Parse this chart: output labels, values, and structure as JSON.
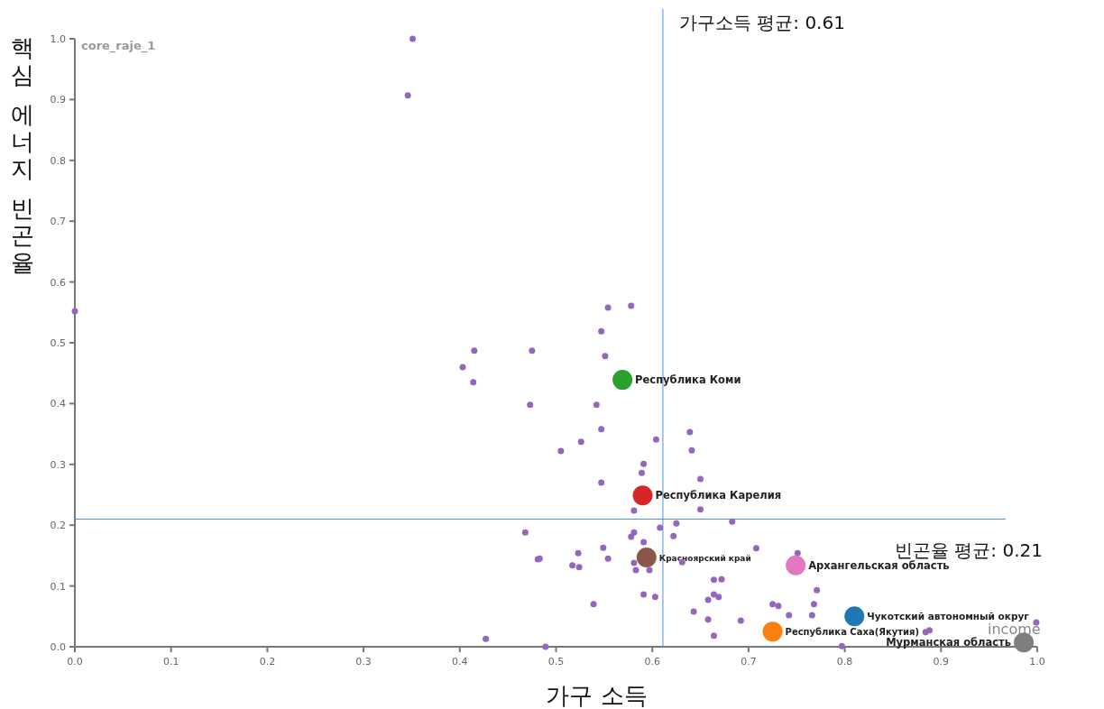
{
  "chart_data": {
    "type": "scatter",
    "xlabel": "가구 소득",
    "ylabel": "핵심 에너지 빈곤율",
    "annotations": [
      "core_raje_1",
      "income"
    ],
    "xlim": [
      0,
      1
    ],
    "ylim": [
      0,
      1
    ],
    "xticks": [
      {
        "value": 0,
        "label": "0.0"
      },
      0.1,
      0.2,
      0.3,
      0.4,
      0.5,
      0.6,
      0.7,
      0.8,
      0.9,
      {
        "value": 1,
        "label": "1.0"
      }
    ],
    "yticks": [
      {
        "value": 0,
        "label": "0.0"
      },
      0.1,
      0.2,
      0.3,
      0.4,
      0.5,
      0.6,
      0.7,
      0.8,
      0.9,
      {
        "value": 1,
        "label": "1.0"
      }
    ],
    "grid": false,
    "marker": "circle",
    "ref_lines": [
      {
        "axis": "x",
        "value": 0.611,
        "label": "가구소득 평균: 0.61",
        "color": "#4a90d9"
      },
      {
        "axis": "y",
        "value": 0.21,
        "label": "빈곤율 평균: 0.21",
        "color": "#4a90d9"
      }
    ],
    "series": [
      {
        "color": "#9467bd",
        "x": [
          0.351,
          0.346,
          0.0,
          0.554,
          0.578,
          0.547,
          0.415,
          0.475,
          0.403,
          0.551,
          0.414,
          0.473,
          0.542,
          0.547,
          0.604,
          0.639,
          0.526,
          0.505,
          0.641,
          0.591,
          0.589,
          0.65,
          0.547,
          0.581,
          0.65,
          0.468,
          0.608,
          0.625,
          0.581,
          0.578,
          0.622,
          0.591,
          0.549,
          0.523,
          0.481,
          0.483,
          0.554,
          0.517,
          0.524,
          0.581,
          0.583,
          0.597,
          0.631,
          0.591,
          0.603,
          0.539,
          0.427,
          0.489,
          0.664,
          0.658,
          0.643,
          0.658,
          0.664,
          0.664,
          0.683,
          0.708,
          0.751,
          0.672,
          0.771,
          0.669,
          0.725,
          0.731,
          0.768,
          0.742,
          0.766,
          0.692,
          0.884,
          0.888,
          0.999,
          0.797
        ],
        "values": [
          1.0,
          0.907,
          0.552,
          0.558,
          0.561,
          0.519,
          0.487,
          0.487,
          0.46,
          0.478,
          0.435,
          0.398,
          0.398,
          0.358,
          0.341,
          0.353,
          0.337,
          0.322,
          0.323,
          0.301,
          0.286,
          0.276,
          0.27,
          0.224,
          0.226,
          0.188,
          0.196,
          0.203,
          0.188,
          0.181,
          0.182,
          0.172,
          0.163,
          0.154,
          0.144,
          0.145,
          0.145,
          0.134,
          0.131,
          0.138,
          0.126,
          0.126,
          0.139,
          0.086,
          0.082,
          0.07,
          0.013,
          0.0,
          0.11,
          0.077,
          0.058,
          0.045,
          0.018,
          0.086,
          0.206,
          0.162,
          0.154,
          0.111,
          0.093,
          0.082,
          0.07,
          0.067,
          0.07,
          0.052,
          0.052,
          0.043,
          0.024,
          0.027,
          0.04,
          0.001
        ]
      },
      {
        "name": "Республика Коми",
        "color": "#2ca02c",
        "x": [
          0.569
        ],
        "values": [
          0.439
        ]
      },
      {
        "name": "Республика Карелия",
        "color": "#d62728",
        "x": [
          0.59
        ],
        "values": [
          0.249
        ]
      },
      {
        "name": "Красноярский край",
        "color": "#8c564b",
        "x": [
          0.594
        ],
        "values": [
          0.147
        ]
      },
      {
        "name": "Архангельская область",
        "color": "#e377c2",
        "x": [
          0.749
        ],
        "values": [
          0.134
        ]
      },
      {
        "name": "Чукотский автономный округ",
        "color": "#1f77b4",
        "x": [
          0.81
        ],
        "values": [
          0.05
        ]
      },
      {
        "name": "Республика Саха(Якутия)",
        "color": "#ff7f0e",
        "x": [
          0.725
        ],
        "values": [
          0.025
        ]
      },
      {
        "name": "Мурманская область",
        "color": "#7f7f7f",
        "x": [
          0.986
        ],
        "values": [
          0.007
        ]
      }
    ]
  }
}
